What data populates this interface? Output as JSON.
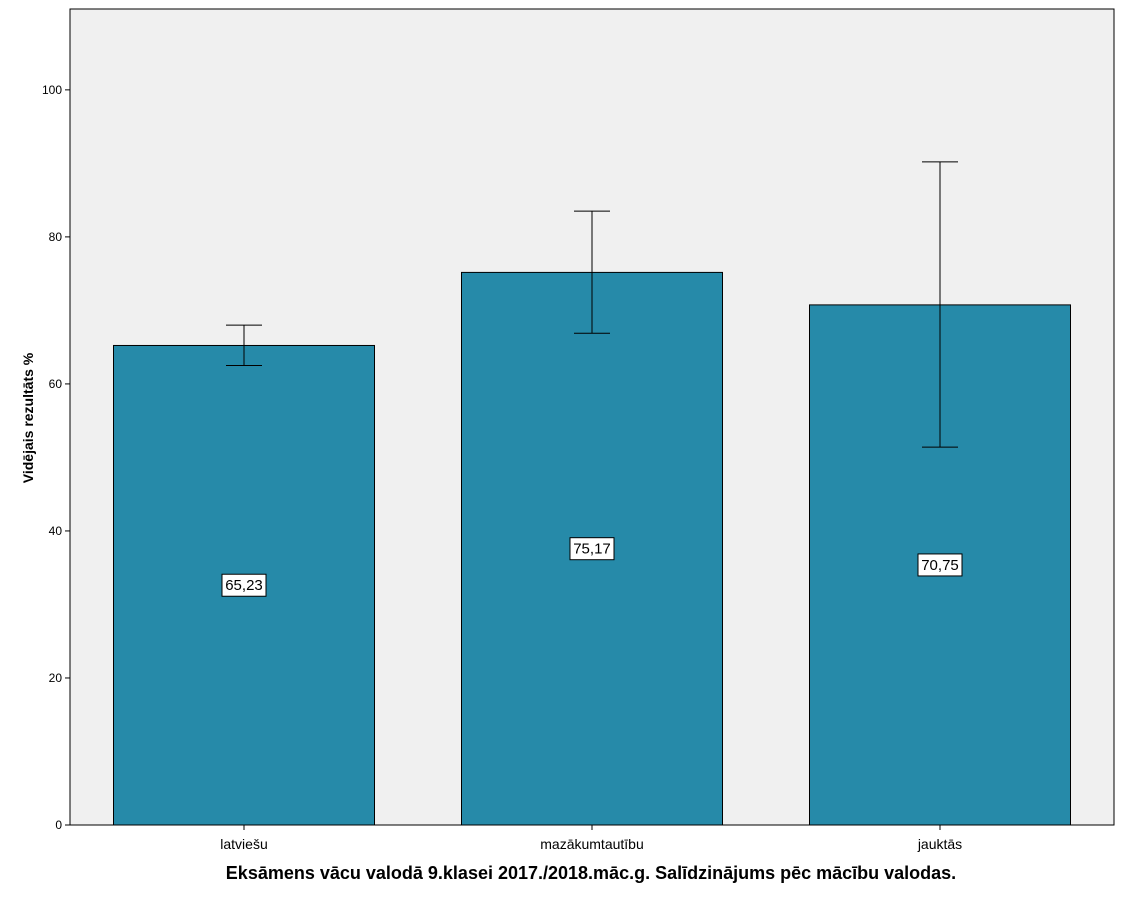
{
  "chart_data": {
    "type": "bar",
    "categories": [
      "latviešu",
      "mazākumtautību",
      "jauktās"
    ],
    "values": [
      65.23,
      75.17,
      70.75
    ],
    "data_labels": [
      "65,23",
      "75,17",
      "70,75"
    ],
    "error_bars": [
      {
        "low": 62.5,
        "high": 68.0
      },
      {
        "low": 66.9,
        "high": 83.5
      },
      {
        "low": 51.4,
        "high": 90.2
      }
    ],
    "title": "",
    "xlabel": "Eksāmens vācu valodā 9.klasei 2017./2018.māc.g. Salīdzinājums pēc mācību valodas.",
    "ylabel": "Vidējais rezultāts %",
    "ylim": [
      0,
      111
    ],
    "yticks": [
      0,
      20,
      40,
      60,
      80,
      100
    ],
    "ytick_labels": [
      "0",
      "20",
      "40",
      "60",
      "80",
      "100"
    ],
    "grid": false,
    "legend": "none",
    "colors": {
      "bar_fill": "#268aa9",
      "plot_background": "#f0f0f0",
      "bar_outline": "#000000",
      "error_bar": "#000000"
    }
  }
}
